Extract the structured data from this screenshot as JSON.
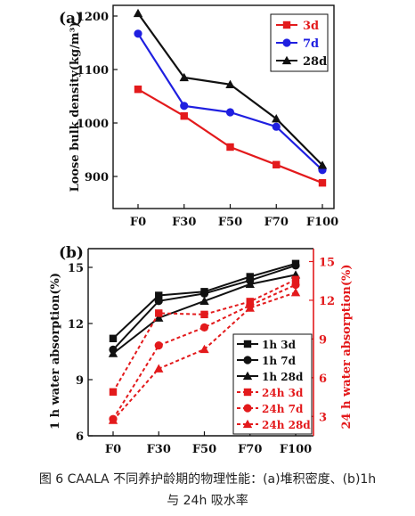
{
  "chart_data": [
    {
      "type": "line",
      "panel_label": "(a)",
      "categories": [
        "F0",
        "F30",
        "F50",
        "F70",
        "F100"
      ],
      "ylabel": "Loose bulk density(kg/m³)",
      "ylim": [
        840,
        1220
      ],
      "yticks": [
        900,
        1000,
        1100,
        1200
      ],
      "legend_position": "top-right",
      "series": [
        {
          "name": "3d",
          "values": [
            1063,
            1013,
            955,
            922,
            888
          ],
          "color": "#e31a1c",
          "marker": "square"
        },
        {
          "name": "7d",
          "values": [
            1167,
            1032,
            1020,
            993,
            912
          ],
          "color": "#1f1fe0",
          "marker": "circle"
        },
        {
          "name": "28d",
          "values": [
            1205,
            1085,
            1072,
            1008,
            921
          ],
          "color": "#111111",
          "marker": "triangle"
        }
      ]
    },
    {
      "type": "line",
      "panel_label": "(b)",
      "categories": [
        "F0",
        "F30",
        "F50",
        "F70",
        "F100"
      ],
      "ylabel_left": "1 h water absorption(%)",
      "ylabel_right": "24 h water absorption(%)",
      "ylim_left": [
        6,
        16
      ],
      "yticks_left": [
        6,
        9,
        12,
        15
      ],
      "ylim_right": [
        1.5,
        16
      ],
      "yticks_right": [
        3,
        6,
        9,
        12,
        15
      ],
      "left_color": "#111111",
      "right_color": "#e31a1c",
      "legend_position": "bottom-right",
      "series": [
        {
          "name": "1h 3d",
          "axis": "left",
          "values": [
            11.2,
            13.5,
            13.7,
            14.5,
            15.2
          ],
          "color": "#111111",
          "marker": "square",
          "dash": false
        },
        {
          "name": "1h 7d",
          "axis": "left",
          "values": [
            10.6,
            13.2,
            13.6,
            14.3,
            15.1
          ],
          "color": "#111111",
          "marker": "circle",
          "dash": false
        },
        {
          "name": "1h 28d",
          "axis": "left",
          "values": [
            10.4,
            12.3,
            13.2,
            14.1,
            14.6
          ],
          "color": "#111111",
          "marker": "triangle",
          "dash": false
        },
        {
          "name": "24h 3d",
          "axis": "right",
          "values": [
            4.9,
            11.0,
            10.9,
            11.9,
            13.6
          ],
          "color": "#e31a1c",
          "marker": "square",
          "dash": true
        },
        {
          "name": "24h 7d",
          "axis": "right",
          "values": [
            2.8,
            8.5,
            9.9,
            11.6,
            13.2
          ],
          "color": "#e31a1c",
          "marker": "circle",
          "dash": true
        },
        {
          "name": "24h 28d",
          "axis": "right",
          "values": [
            2.7,
            6.7,
            8.2,
            11.4,
            12.6
          ],
          "color": "#e31a1c",
          "marker": "triangle",
          "dash": true
        }
      ]
    }
  ],
  "caption": {
    "line1": "图 6  CAALA 不同养护龄期的物理性能：(a)堆积密度、(b)1h",
    "line2": "与 24h 吸水率"
  }
}
